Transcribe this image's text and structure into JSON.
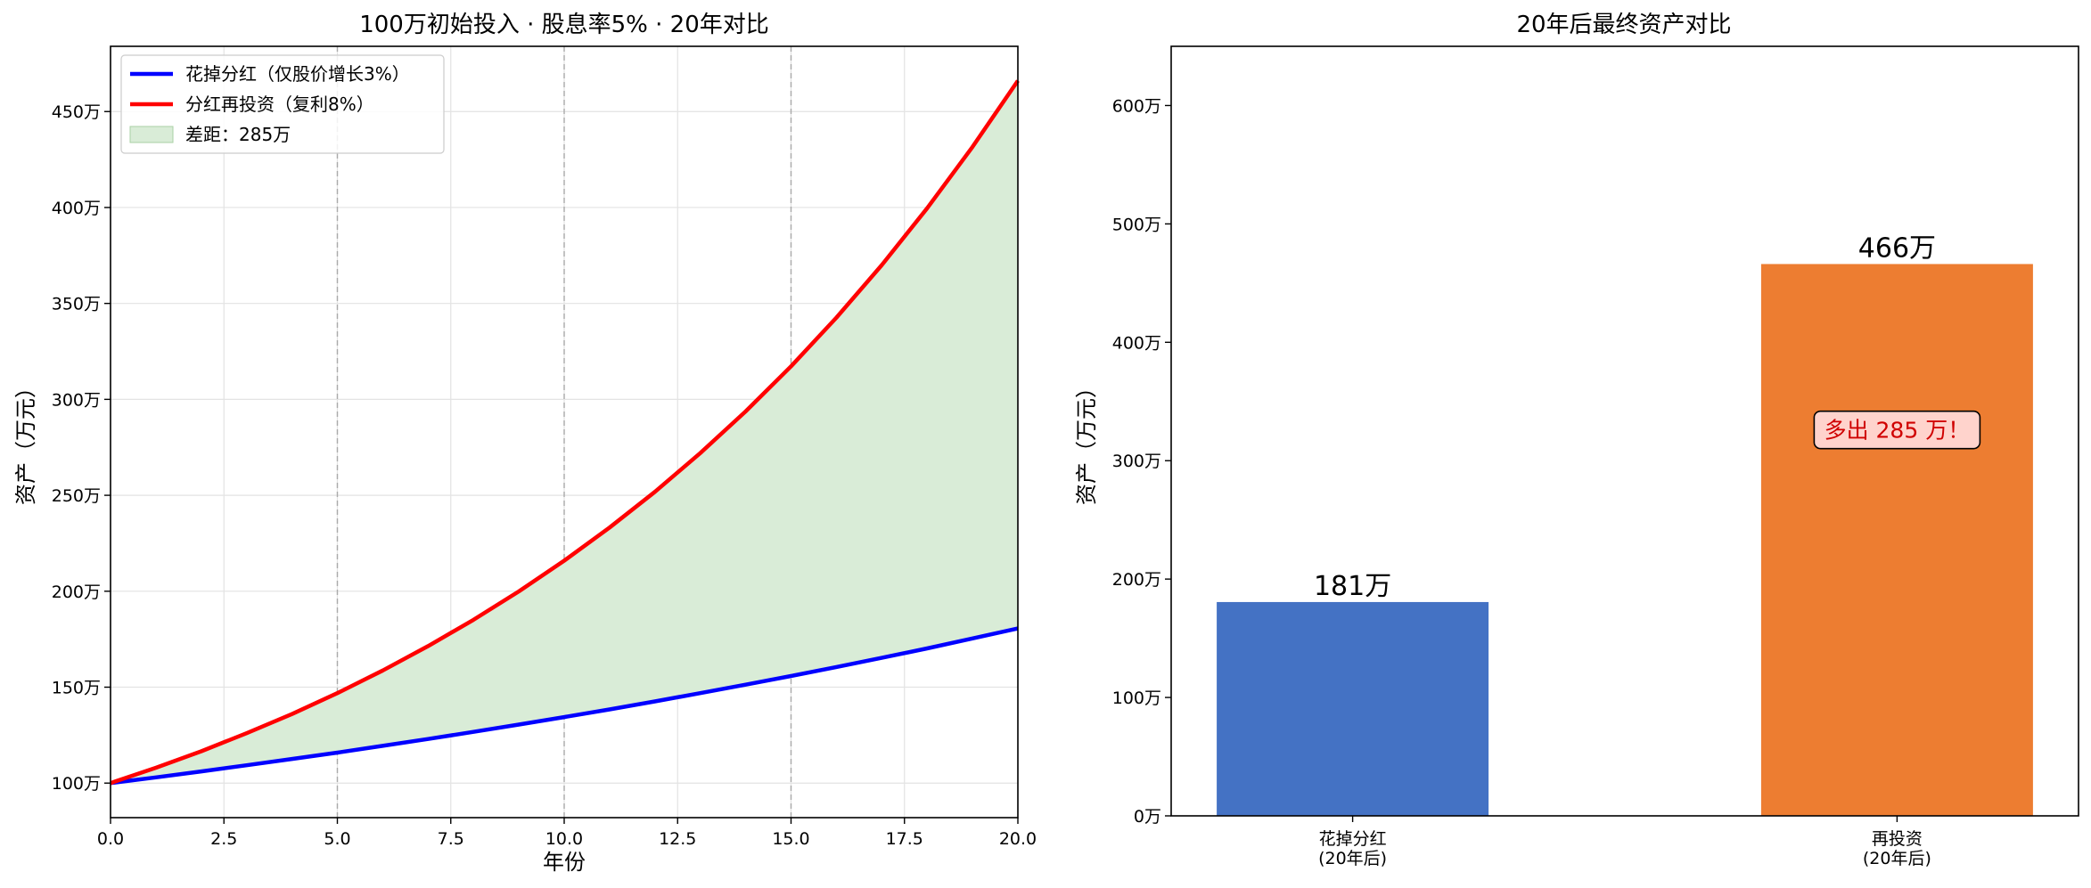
{
  "chart_data": [
    {
      "type": "line",
      "title": "100万初始投入 · 股息率5% · 20年对比",
      "xlabel": "年份",
      "ylabel": "资产（万元）",
      "xlim": [
        0,
        20
      ],
      "ylim": [
        82,
        484
      ],
      "xticks": [
        0,
        2.5,
        5,
        7.5,
        10,
        12.5,
        15,
        17.5,
        20
      ],
      "xtick_labels": [
        "0.0",
        "2.5",
        "5.0",
        "7.5",
        "10.0",
        "12.5",
        "15.0",
        "17.5",
        "20.0"
      ],
      "yticks": [
        100,
        150,
        200,
        250,
        300,
        350,
        400,
        450
      ],
      "ytick_labels": [
        "100万",
        "150万",
        "200万",
        "250万",
        "300万",
        "350万",
        "400万",
        "450万"
      ],
      "grid": true,
      "milestone_lines_x": [
        5,
        10,
        15
      ],
      "legend_position": "top-left",
      "x": [
        0,
        1,
        2,
        3,
        4,
        5,
        6,
        7,
        8,
        9,
        10,
        11,
        12,
        13,
        14,
        15,
        16,
        17,
        18,
        19,
        20
      ],
      "series": [
        {
          "name": "花掉分红（仅股价增长3%）",
          "color": "#0000ff",
          "values": [
            100,
            103,
            106.1,
            109.3,
            112.6,
            115.9,
            119.4,
            123,
            126.7,
            130.5,
            134.4,
            138.4,
            142.6,
            146.9,
            151.3,
            155.8,
            160.5,
            165.3,
            170.2,
            175.4,
            180.6
          ]
        },
        {
          "name": "分红再投资（复利8%）",
          "color": "#ff0000",
          "values": [
            100,
            108,
            116.6,
            126,
            136,
            146.9,
            158.7,
            171.4,
            185.1,
            199.9,
            215.9,
            233.2,
            251.8,
            272,
            293.7,
            317.2,
            342.6,
            370,
            399.6,
            431.6,
            466.1
          ]
        }
      ],
      "fill_between": {
        "name": "差距：285万",
        "color": "#d9ecd7"
      }
    },
    {
      "type": "bar",
      "title": "20年后最终资产对比",
      "ylabel": "资产（万元）",
      "ylim": [
        0,
        650
      ],
      "yticks": [
        0,
        100,
        200,
        300,
        400,
        500,
        600
      ],
      "ytick_labels": [
        "0万",
        "100万",
        "200万",
        "300万",
        "400万",
        "500万",
        "600万"
      ],
      "categories": [
        "花掉分红\n(20年后)",
        "再投资\n(20年后)"
      ],
      "values": [
        180.6,
        466.1
      ],
      "value_labels": [
        "181万",
        "466万"
      ],
      "colors": [
        "#4472c4",
        "#ed7d31"
      ],
      "annotation": "多出 285 万！",
      "annotation_y": 326
    }
  ]
}
